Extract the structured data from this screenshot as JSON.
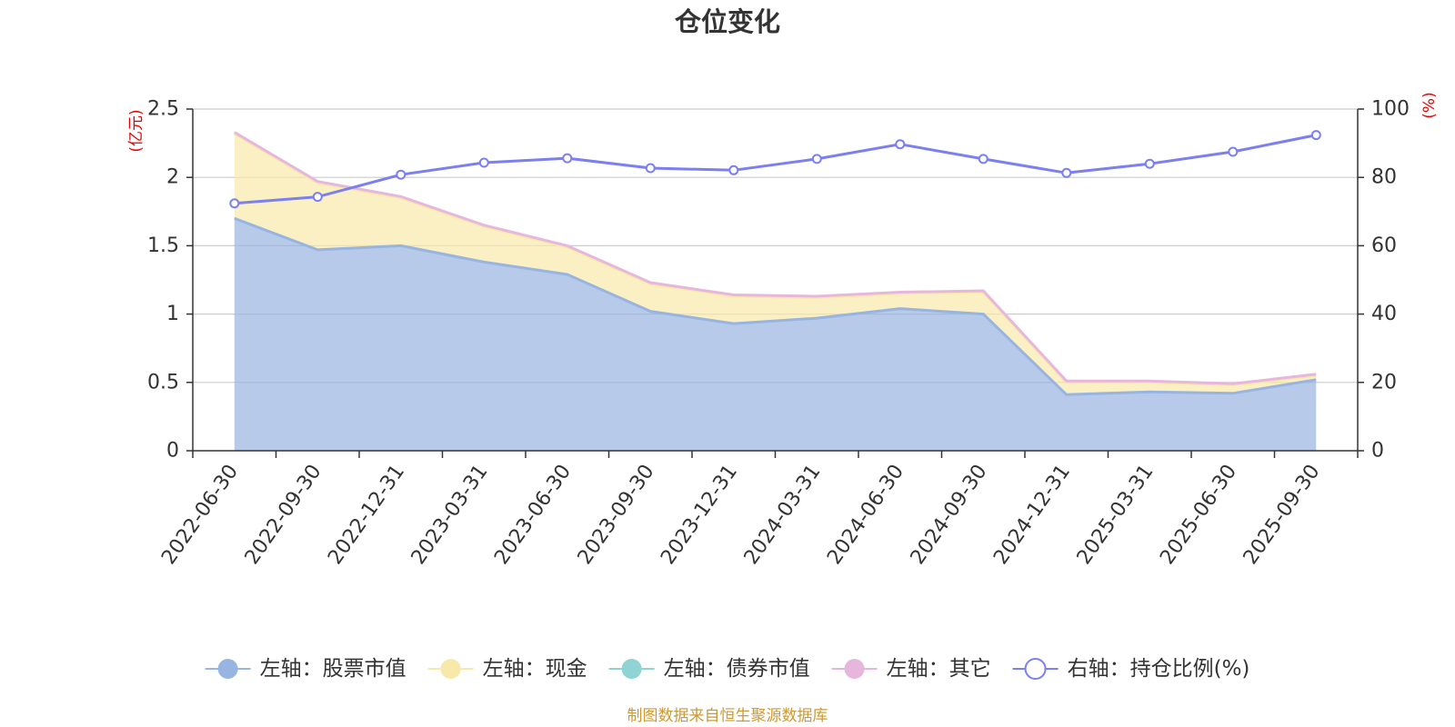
{
  "source_note": "制图数据来自恒生聚源数据库",
  "colors": {
    "title": "#333333",
    "axis": "#333333",
    "grid": "#cccccc",
    "unit_label": "#e60000",
    "source_note": "#cc9933",
    "marker_fill": "#ffffff"
  },
  "chart_data": {
    "type": "area",
    "title": "仓位变化",
    "stacked": true,
    "grid": true,
    "legend_position": "bottom",
    "categories": [
      "2022-06-30",
      "2022-09-30",
      "2022-12-31",
      "2023-03-31",
      "2023-06-30",
      "2023-09-30",
      "2023-12-31",
      "2024-03-31",
      "2024-06-30",
      "2024-09-30",
      "2024-12-31",
      "2025-03-31",
      "2025-06-30",
      "2025-09-30"
    ],
    "left_axis": {
      "unit_label": "(亿元)",
      "min": 0,
      "max": 2.5,
      "ticks": [
        0,
        0.5,
        1,
        1.5,
        2,
        2.5
      ]
    },
    "right_axis": {
      "unit_label": "(%)",
      "min": 0,
      "max": 100,
      "ticks": [
        0,
        20,
        40,
        60,
        80,
        100
      ]
    },
    "series": [
      {
        "name": "左轴：股票市值",
        "axis": "left",
        "type": "area",
        "color": "#98b4e0",
        "values": [
          1.7,
          1.47,
          1.5,
          1.38,
          1.29,
          1.02,
          0.93,
          0.97,
          1.04,
          1.0,
          0.41,
          0.43,
          0.42,
          0.52
        ]
      },
      {
        "name": "左轴：现金",
        "axis": "left",
        "type": "area",
        "color": "#f8e9aa",
        "values": [
          0.62,
          0.49,
          0.35,
          0.26,
          0.2,
          0.2,
          0.2,
          0.15,
          0.11,
          0.16,
          0.09,
          0.07,
          0.06,
          0.03
        ]
      },
      {
        "name": "左轴：债券市值",
        "axis": "left",
        "type": "area",
        "color": "#8fd3d4",
        "values": [
          0,
          0,
          0,
          0,
          0,
          0,
          0,
          0,
          0,
          0,
          0,
          0,
          0,
          0
        ]
      },
      {
        "name": "左轴：其它",
        "axis": "left",
        "type": "area",
        "color": "#e7b6dc",
        "values": [
          0.01,
          0.01,
          0.01,
          0.01,
          0.01,
          0.01,
          0.01,
          0.01,
          0.01,
          0.01,
          0.01,
          0.01,
          0.01,
          0.01
        ]
      },
      {
        "name": "右轴：持仓比例(%)",
        "axis": "right",
        "type": "line",
        "color": "#7b7ff0",
        "values": [
          72.4,
          74.3,
          80.8,
          84.3,
          85.6,
          82.7,
          82.1,
          85.4,
          89.7,
          85.4,
          81.3,
          84.0,
          87.5,
          92.4
        ]
      }
    ]
  }
}
